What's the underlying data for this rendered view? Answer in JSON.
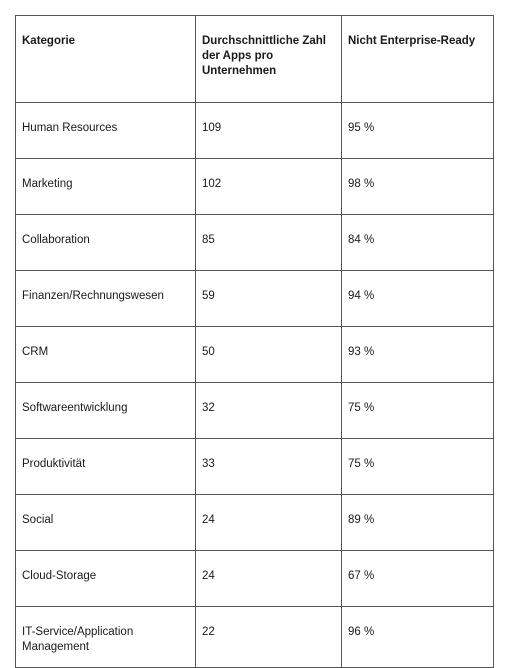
{
  "table": {
    "headers": [
      "Kategorie",
      "Durchschnittliche Zahl der Apps pro Unternehmen",
      "Nicht Enterprise-Ready"
    ],
    "rows": [
      [
        "Human Resources",
        "109",
        "95 %"
      ],
      [
        "Marketing",
        "102",
        "98 %"
      ],
      [
        "Collaboration",
        "85",
        "84 %"
      ],
      [
        "Finanzen/Rechnungswesen",
        "59",
        "94 %"
      ],
      [
        "CRM",
        "50",
        "93 %"
      ],
      [
        "Softwareentwicklung",
        "32",
        "75 %"
      ],
      [
        "Produktivität",
        "33",
        "75 %"
      ],
      [
        "Social",
        "24",
        "89 %"
      ],
      [
        "Cloud-Storage",
        "24",
        "67 %"
      ],
      [
        "IT-Service/Application Management",
        "22",
        "96 %"
      ]
    ]
  }
}
